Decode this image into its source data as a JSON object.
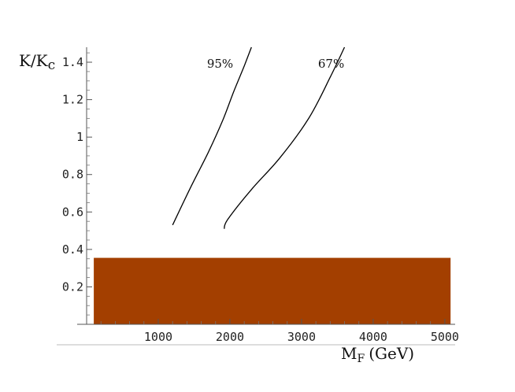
{
  "chart_data": {
    "type": "line",
    "xlabel": "M",
    "xlabel_sub": "F",
    "xlabel_unit": "(GeV)",
    "ylabel": "K/K",
    "ylabel_sub": "c",
    "xlim": [
      0,
      5100
    ],
    "ylim": [
      0,
      1.48
    ],
    "x_ticks": [
      {
        "value": 1000,
        "label": "1000"
      },
      {
        "value": 2000,
        "label": "2000"
      },
      {
        "value": 3000,
        "label": "3000"
      },
      {
        "value": 4000,
        "label": "4000"
      },
      {
        "value": 5000,
        "label": "5000"
      }
    ],
    "y_ticks": [
      {
        "value": 0.2,
        "label": "0.2"
      },
      {
        "value": 0.4,
        "label": "0.4"
      },
      {
        "value": 0.6,
        "label": "0.6"
      },
      {
        "value": 0.8,
        "label": "0.8"
      },
      {
        "value": 1.0,
        "label": "1"
      },
      {
        "value": 1.2,
        "label": "1.2"
      },
      {
        "value": 1.4,
        "label": "1.4"
      }
    ],
    "series": [
      {
        "name": "95%",
        "color": "#000000",
        "x": [
          1200,
          1450,
          1700,
          1900,
          2050,
          2200,
          2300
        ],
        "y": [
          0.53,
          0.73,
          0.92,
          1.09,
          1.24,
          1.38,
          1.48
        ]
      },
      {
        "name": "67%",
        "color": "#000000",
        "x": [
          1920,
          1970,
          2300,
          2700,
          3100,
          3400,
          3600
        ],
        "y": [
          0.51,
          0.56,
          0.72,
          0.89,
          1.1,
          1.32,
          1.48
        ]
      }
    ],
    "annotations": [
      {
        "text": "95%",
        "x": 1680,
        "y": 1.37
      },
      {
        "text": "67%",
        "x": 3230,
        "y": 1.37
      }
    ],
    "excluded_region": {
      "x": [
        100,
        5080
      ],
      "y": [
        0.0,
        0.355
      ],
      "color": "#A33F00"
    }
  }
}
